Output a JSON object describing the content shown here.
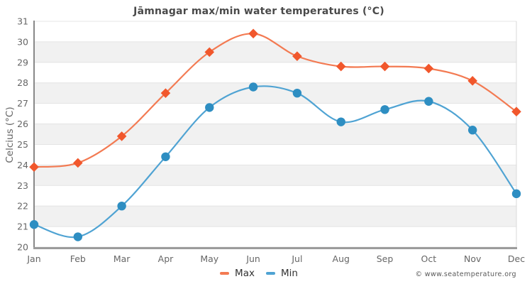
{
  "title": "Jāmnagar max/min water temperatures (°C)",
  "y_axis_title": "Celcius (°C)",
  "credits": "© www.seatemperature.org",
  "colors": {
    "band": "#f1f1f1",
    "gridline": "#e4e4e4",
    "plot_border": "#d9d9d9",
    "axis_left": "#888888",
    "axis_bottom": "#9c9c9c",
    "tick_text": "#666666",
    "title_text": "#4a4a4a",
    "legend_text": "#333333",
    "credits_text": "#595959"
  },
  "chart_data": {
    "type": "line",
    "title": "Jāmnagar max/min water temperatures (°C)",
    "xlabel": "",
    "ylabel": "Celcius (°C)",
    "categories": [
      "Jan",
      "Feb",
      "Mar",
      "Apr",
      "May",
      "Jun",
      "Jul",
      "Aug",
      "Sep",
      "Oct",
      "Nov",
      "Dec"
    ],
    "series": [
      {
        "name": "Max",
        "marker": "diamond",
        "line_color": "#f37a52",
        "marker_color": "#f1572c",
        "values": [
          23.9,
          24.1,
          25.4,
          27.5,
          29.5,
          30.4,
          29.3,
          28.8,
          28.8,
          28.7,
          28.1,
          26.6
        ]
      },
      {
        "name": "Min",
        "marker": "circle",
        "line_color": "#4fa3d3",
        "marker_color": "#2e8ec2",
        "values": [
          21.1,
          20.5,
          22.0,
          24.4,
          26.8,
          27.8,
          27.5,
          26.1,
          26.7,
          27.1,
          25.7,
          22.6
        ]
      }
    ],
    "ylim": [
      20,
      31
    ],
    "y_ticks": [
      20,
      21,
      22,
      23,
      24,
      25,
      26,
      27,
      28,
      29,
      30,
      31
    ],
    "grid": "horizontal",
    "banding": "alternate-rows-gray",
    "smooth": true,
    "legend_position": "bottom-center"
  }
}
